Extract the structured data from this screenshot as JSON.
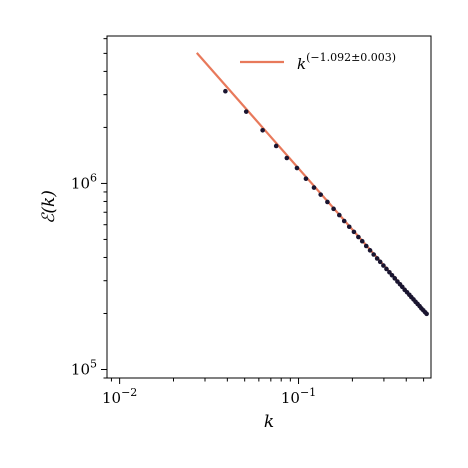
{
  "chart_data": {
    "type": "scatter",
    "x_scale": "log",
    "y_scale": "log",
    "xlabel": "k",
    "ylabel": "ℰ(k)",
    "xlim": [
      0.0085,
      0.55
    ],
    "ylim": [
      90000,
      6200000
    ],
    "x_ticks": [
      {
        "value": 0.01,
        "base": "10",
        "exp": "−2"
      },
      {
        "value": 0.1,
        "base": "10",
        "exp": "−1"
      }
    ],
    "y_ticks": [
      {
        "value": 100000,
        "base": "10",
        "exp": "5"
      },
      {
        "value": 1000000,
        "base": "10",
        "exp": "6"
      }
    ],
    "legend_position": "top-right",
    "series": [
      {
        "kind": "points",
        "color": "#1a1530",
        "x": [
          0.039,
          0.051,
          0.063,
          0.075,
          0.086,
          0.098,
          0.11,
          0.122,
          0.133,
          0.145,
          0.157,
          0.169,
          0.18,
          0.192,
          0.204,
          0.216,
          0.227,
          0.239,
          0.251,
          0.263,
          0.275,
          0.286,
          0.298,
          0.31,
          0.322,
          0.333,
          0.345,
          0.357,
          0.369,
          0.38,
          0.392,
          0.404,
          0.416,
          0.427,
          0.439,
          0.451,
          0.463,
          0.475,
          0.486,
          0.498,
          0.51,
          0.52
        ],
        "y": [
          3130000,
          2430000,
          1930000,
          1590000,
          1370000,
          1210000,
          1060000,
          950000,
          870000,
          795000,
          730000,
          676000,
          628000,
          585000,
          549000,
          515000,
          489000,
          461000,
          437000,
          415000,
          395000,
          379000,
          362000,
          347000,
          333000,
          321000,
          309000,
          297000,
          287000,
          278000,
          268000,
          260000,
          252000,
          245000,
          238000,
          231000,
          225000,
          219000,
          213000,
          208000,
          203000,
          199000
        ]
      },
      {
        "kind": "fit",
        "label": "k^(−1.092±0.003)",
        "label_base": "k",
        "label_exp": "(−1.092±0.003)",
        "color": "#e8795b",
        "exponent": -1.092,
        "x_range": [
          0.027,
          0.52
        ],
        "anchor_x": 0.52,
        "anchor_y": 199000
      }
    ]
  }
}
